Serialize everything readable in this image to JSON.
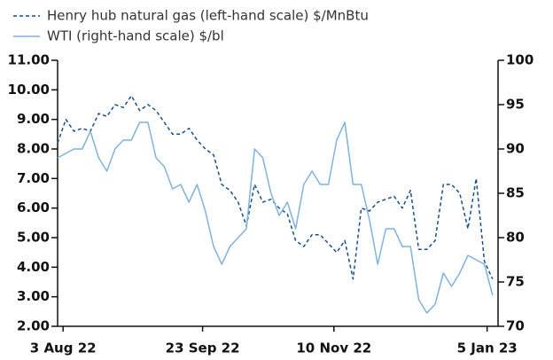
{
  "chart_data": {
    "type": "line",
    "x": [
      "2022-08-01",
      "2022-08-04",
      "2022-08-07",
      "2022-08-10",
      "2022-08-13",
      "2022-08-16",
      "2022-08-19",
      "2022-08-22",
      "2022-08-25",
      "2022-08-28",
      "2022-08-31",
      "2022-09-03",
      "2022-09-06",
      "2022-09-09",
      "2022-09-12",
      "2022-09-15",
      "2022-09-18",
      "2022-09-21",
      "2022-09-24",
      "2022-09-27",
      "2022-09-30",
      "2022-10-03",
      "2022-10-06",
      "2022-10-09",
      "2022-10-12",
      "2022-10-15",
      "2022-10-18",
      "2022-10-21",
      "2022-10-24",
      "2022-10-27",
      "2022-10-30",
      "2022-11-02",
      "2022-11-05",
      "2022-11-08",
      "2022-11-11",
      "2022-11-14",
      "2022-11-17",
      "2022-11-20",
      "2022-11-23",
      "2022-11-26",
      "2022-11-29",
      "2022-12-02",
      "2022-12-05",
      "2022-12-08",
      "2022-12-11",
      "2022-12-14",
      "2022-12-17",
      "2022-12-20",
      "2022-12-23",
      "2022-12-26",
      "2022-12-29",
      "2023-01-01",
      "2023-01-04",
      "2023-01-07"
    ],
    "series": [
      {
        "name": "Henry hub natural gas (left-hand scale) $/MnBtu",
        "color": "#1a4f8a",
        "dashed": true,
        "axis": "y",
        "values": [
          8.2,
          9.0,
          8.6,
          8.7,
          8.6,
          9.2,
          9.1,
          9.5,
          9.4,
          9.8,
          9.3,
          9.5,
          9.3,
          8.9,
          8.5,
          8.5,
          8.7,
          8.3,
          8.0,
          7.8,
          6.8,
          6.6,
          6.2,
          5.4,
          6.8,
          6.2,
          6.3,
          6.0,
          5.8,
          4.9,
          4.7,
          5.1,
          5.1,
          4.8,
          4.5,
          4.9,
          3.6,
          6.0,
          5.9,
          6.2,
          6.3,
          6.4,
          6.0,
          6.6,
          4.6,
          4.6,
          4.9,
          6.8,
          6.8,
          6.5,
          5.3,
          7.0,
          4.2,
          3.6
        ]
      },
      {
        "name": "WTI (right-hand scale) $/bl",
        "color": "#7fb2dd",
        "dashed": false,
        "axis": "y2",
        "values": [
          89,
          89.5,
          90,
          90,
          92,
          89,
          87.5,
          90,
          91,
          91,
          93,
          93,
          89,
          88,
          85.5,
          86,
          84,
          86,
          83,
          79,
          77,
          79,
          80,
          81,
          90,
          89,
          85,
          82.5,
          84,
          81,
          86,
          87.5,
          86,
          86,
          91,
          93,
          86,
          86,
          82,
          77,
          81,
          81,
          79,
          79,
          73,
          71.5,
          72.5,
          76,
          74.5,
          76,
          78,
          77.5,
          77,
          73.5
        ]
      }
    ],
    "xlim": [
      "2022-08-01",
      "2023-01-09"
    ],
    "xticks": [
      {
        "value": "2022-08-03",
        "label": "3 Aug 22"
      },
      {
        "value": "2022-09-23",
        "label": "23 Sep 22"
      },
      {
        "value": "2022-11-10",
        "label": "10 Nov 22"
      },
      {
        "value": "2023-01-05",
        "label": "5 Jan 23"
      }
    ],
    "ylim": [
      2,
      11
    ],
    "yticks": [
      {
        "value": 2,
        "label": "2.00"
      },
      {
        "value": 3,
        "label": "3.00"
      },
      {
        "value": 4,
        "label": "4.00"
      },
      {
        "value": 5,
        "label": "5.00"
      },
      {
        "value": 6,
        "label": "6.00"
      },
      {
        "value": 7,
        "label": "7.00"
      },
      {
        "value": 8,
        "label": "8.00"
      },
      {
        "value": 9,
        "label": "9.00"
      },
      {
        "value": 10,
        "label": "10.00"
      },
      {
        "value": 11,
        "label": "11.00"
      }
    ],
    "y2lim": [
      70,
      100
    ],
    "y2ticks": [
      70,
      75,
      80,
      85,
      90,
      95,
      100
    ],
    "legend": "top-left"
  }
}
